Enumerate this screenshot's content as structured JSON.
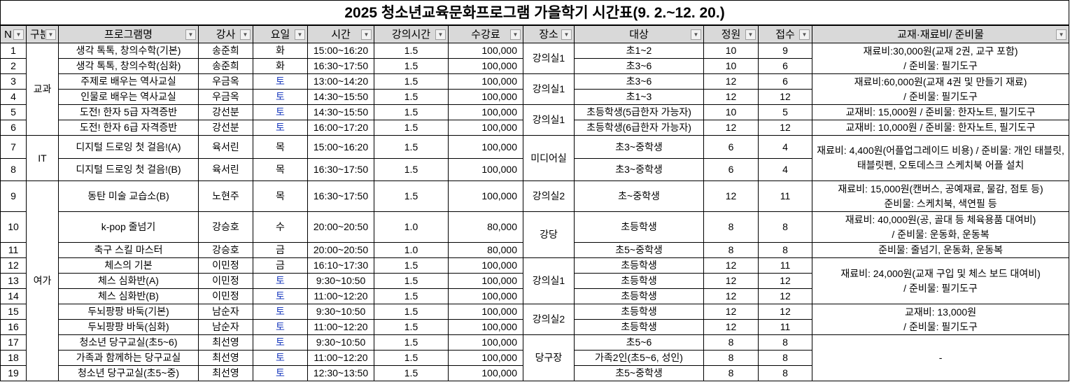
{
  "title": "2025 청소년교육문화프로그램 가을학기 시간표(9. 2.~12. 20.)",
  "headers": [
    "N",
    "구분",
    "프로그램명",
    "강사",
    "요일",
    "시간",
    "강의시간",
    "수강료",
    "장소",
    "대상",
    "정원",
    "접수",
    "교재·재료비/ 준비물"
  ],
  "colors": {
    "header_bg": "#d9d9d9",
    "saturday_text": "#1f3fbf",
    "border": "#000000"
  },
  "icons": {
    "filter": "dropdown-filter-icon"
  },
  "rows": [
    {
      "no": "1",
      "program": "생각 톡톡, 창의수학(기본)",
      "teacher": "송준희",
      "day": "화",
      "time": "15:00~16:20",
      "hours": "1.5",
      "fee": "100,000",
      "target": "초1~2",
      "capacity": "10",
      "applied": "9"
    },
    {
      "no": "2",
      "program": "생각 톡톡, 창의수학(심화)",
      "teacher": "송준희",
      "day": "화",
      "time": "16:30~17:50",
      "hours": "1.5",
      "fee": "100,000",
      "target": "초3~6",
      "capacity": "10",
      "applied": "6"
    },
    {
      "no": "3",
      "program": "주제로 배우는 역사교실",
      "teacher": "우금옥",
      "day": "토",
      "time": "13:00~14:20",
      "hours": "1.5",
      "fee": "100,000",
      "target": "초3~6",
      "capacity": "12",
      "applied": "6"
    },
    {
      "no": "4",
      "program": "인물로 배우는 역사교실",
      "teacher": "우금옥",
      "day": "토",
      "time": "14:30~15:50",
      "hours": "1.5",
      "fee": "100,000",
      "target": "초1~3",
      "capacity": "12",
      "applied": "12"
    },
    {
      "no": "5",
      "program": "도전! 한자 5급 자격증반",
      "teacher": "강선분",
      "day": "토",
      "time": "14:30~15:50",
      "hours": "1.5",
      "fee": "100,000",
      "target": "초등학생(5급한자 가능자)",
      "capacity": "10",
      "applied": "5"
    },
    {
      "no": "6",
      "program": "도전! 한자 6급 자격증반",
      "teacher": "강선분",
      "day": "토",
      "time": "16:00~17:20",
      "hours": "1.5",
      "fee": "100,000",
      "target": "초등학생(6급한자 가능자)",
      "capacity": "12",
      "applied": "12"
    },
    {
      "no": "7",
      "program": "디지털 드로잉 첫 걸음!(A)",
      "teacher": "육서린",
      "day": "목",
      "time": "15:00~16:20",
      "hours": "1.5",
      "fee": "100,000",
      "target": "초3~중학생",
      "capacity": "6",
      "applied": "4"
    },
    {
      "no": "8",
      "program": "디지털 드로잉 첫 걸음!(B)",
      "teacher": "육서린",
      "day": "목",
      "time": "16:30~17:50",
      "hours": "1.5",
      "fee": "100,000",
      "target": "초3~중학생",
      "capacity": "6",
      "applied": "4"
    },
    {
      "no": "9",
      "program": "동탄 미술 교습소(B)",
      "teacher": "노현주",
      "day": "목",
      "time": "16:30~17:50",
      "hours": "1.5",
      "fee": "100,000",
      "target": "초~중학생",
      "capacity": "12",
      "applied": "11"
    },
    {
      "no": "10",
      "program": "k-pop 줄넘기",
      "teacher": "강승호",
      "day": "수",
      "time": "20:00~20:50",
      "hours": "1.0",
      "fee": "80,000",
      "target": "초등학생",
      "capacity": "8",
      "applied": "8"
    },
    {
      "no": "11",
      "program": "축구 스킬 마스터",
      "teacher": "강승호",
      "day": "금",
      "time": "20:00~20:50",
      "hours": "1.0",
      "fee": "80,000",
      "target": "초5~중학생",
      "capacity": "8",
      "applied": "8"
    },
    {
      "no": "12",
      "program": "체스의 기본",
      "teacher": "이민정",
      "day": "금",
      "time": "16:10~17:30",
      "hours": "1.5",
      "fee": "100,000",
      "target": "초등학생",
      "capacity": "12",
      "applied": "11"
    },
    {
      "no": "13",
      "program": "체스 심화반(A)",
      "teacher": "이민정",
      "day": "토",
      "time": "9:30~10:50",
      "hours": "1.5",
      "fee": "100,000",
      "target": "초등학생",
      "capacity": "12",
      "applied": "12"
    },
    {
      "no": "14",
      "program": "체스 심화반(B)",
      "teacher": "이민정",
      "day": "토",
      "time": "11:00~12:20",
      "hours": "1.5",
      "fee": "100,000",
      "target": "초등학생",
      "capacity": "12",
      "applied": "12"
    },
    {
      "no": "15",
      "program": "두뇌팡팡 바둑(기본)",
      "teacher": "남순자",
      "day": "토",
      "time": "9:30~10:50",
      "hours": "1.5",
      "fee": "100,000",
      "target": "초등학생",
      "capacity": "12",
      "applied": "12"
    },
    {
      "no": "16",
      "program": "두뇌팡팡 바둑(심화)",
      "teacher": "남순자",
      "day": "토",
      "time": "11:00~12:20",
      "hours": "1.5",
      "fee": "100,000",
      "target": "초등학생",
      "capacity": "12",
      "applied": "11"
    },
    {
      "no": "17",
      "program": "청소년 당구교실(초5~6)",
      "teacher": "최선영",
      "day": "토",
      "time": "9:30~10:50",
      "hours": "1.5",
      "fee": "100,000",
      "target": "초5~6",
      "capacity": "8",
      "applied": "8"
    },
    {
      "no": "18",
      "program": "가족과 함께하는 당구교실",
      "teacher": "최선영",
      "day": "토",
      "time": "11:00~12:20",
      "hours": "1.5",
      "fee": "100,000",
      "target": "가족2인(초5~6, 성인)",
      "capacity": "8",
      "applied": "8"
    },
    {
      "no": "19",
      "program": "청소년 당구교실(초5~중)",
      "teacher": "최선영",
      "day": "토",
      "time": "12:30~13:50",
      "hours": "1.5",
      "fee": "100,000",
      "target": "초5~중학생",
      "capacity": "8",
      "applied": "8"
    }
  ],
  "categories": [
    {
      "label": "교과",
      "span": 6
    },
    {
      "label": "IT",
      "span": 2
    },
    {
      "label": "여가",
      "span": 11
    }
  ],
  "locations": [
    {
      "label": "강의실1",
      "span": 2
    },
    {
      "label": "강의실1",
      "span": 2
    },
    {
      "label": "강의실1",
      "span": 2
    },
    {
      "label": "미디어실",
      "span": 2
    },
    {
      "label": "강의실2",
      "span": 1
    },
    {
      "label": "강당",
      "span": 2
    },
    {
      "label": "강의실1",
      "span": 3
    },
    {
      "label": "강의실2",
      "span": 2
    },
    {
      "label": "당구장",
      "span": 3
    }
  ],
  "materials": [
    {
      "text": "재료비:30,000원(교재 2권, 교구 포함)\n/ 준비물: 필기도구",
      "span": 2
    },
    {
      "text": "재료비:60,000원(교재 4권 및 만들기 재료)\n/ 준비물: 필기도구",
      "span": 2
    },
    {
      "text": "교재비: 15,000원 / 준비물: 한자노트, 필기도구",
      "span": 1
    },
    {
      "text": "교재비: 10,000원 / 준비물: 한자노트, 필기도구",
      "span": 1
    },
    {
      "text": "재료비: 4,400원(어플업그레이드 비용) / 준비물: 개인 태블릿, 태블릿펜, 오토데스크 스케치북 어플 설치",
      "span": 2,
      "wrap": true
    },
    {
      "text": "재료비: 15,000원(캔버스, 공예재료, 물감, 점토 등)\n준비물: 스케치북, 색연필 등",
      "span": 1
    },
    {
      "text": "재료비: 40,000원(공, 골대 등 체육용품 대여비)\n/ 준비물: 운동화, 운동복",
      "span": 1
    },
    {
      "text": "준비물: 줄넘기, 운동화, 운동복",
      "span": 1
    },
    {
      "text": "재료비: 24,000원(교재 구입 및 체스 보드 대여비)\n/ 준비물: 필기도구",
      "span": 3
    },
    {
      "text": "교재비: 13,000원\n/ 준비물: 필기도구",
      "span": 2
    },
    {
      "text": "-",
      "span": 3
    }
  ]
}
